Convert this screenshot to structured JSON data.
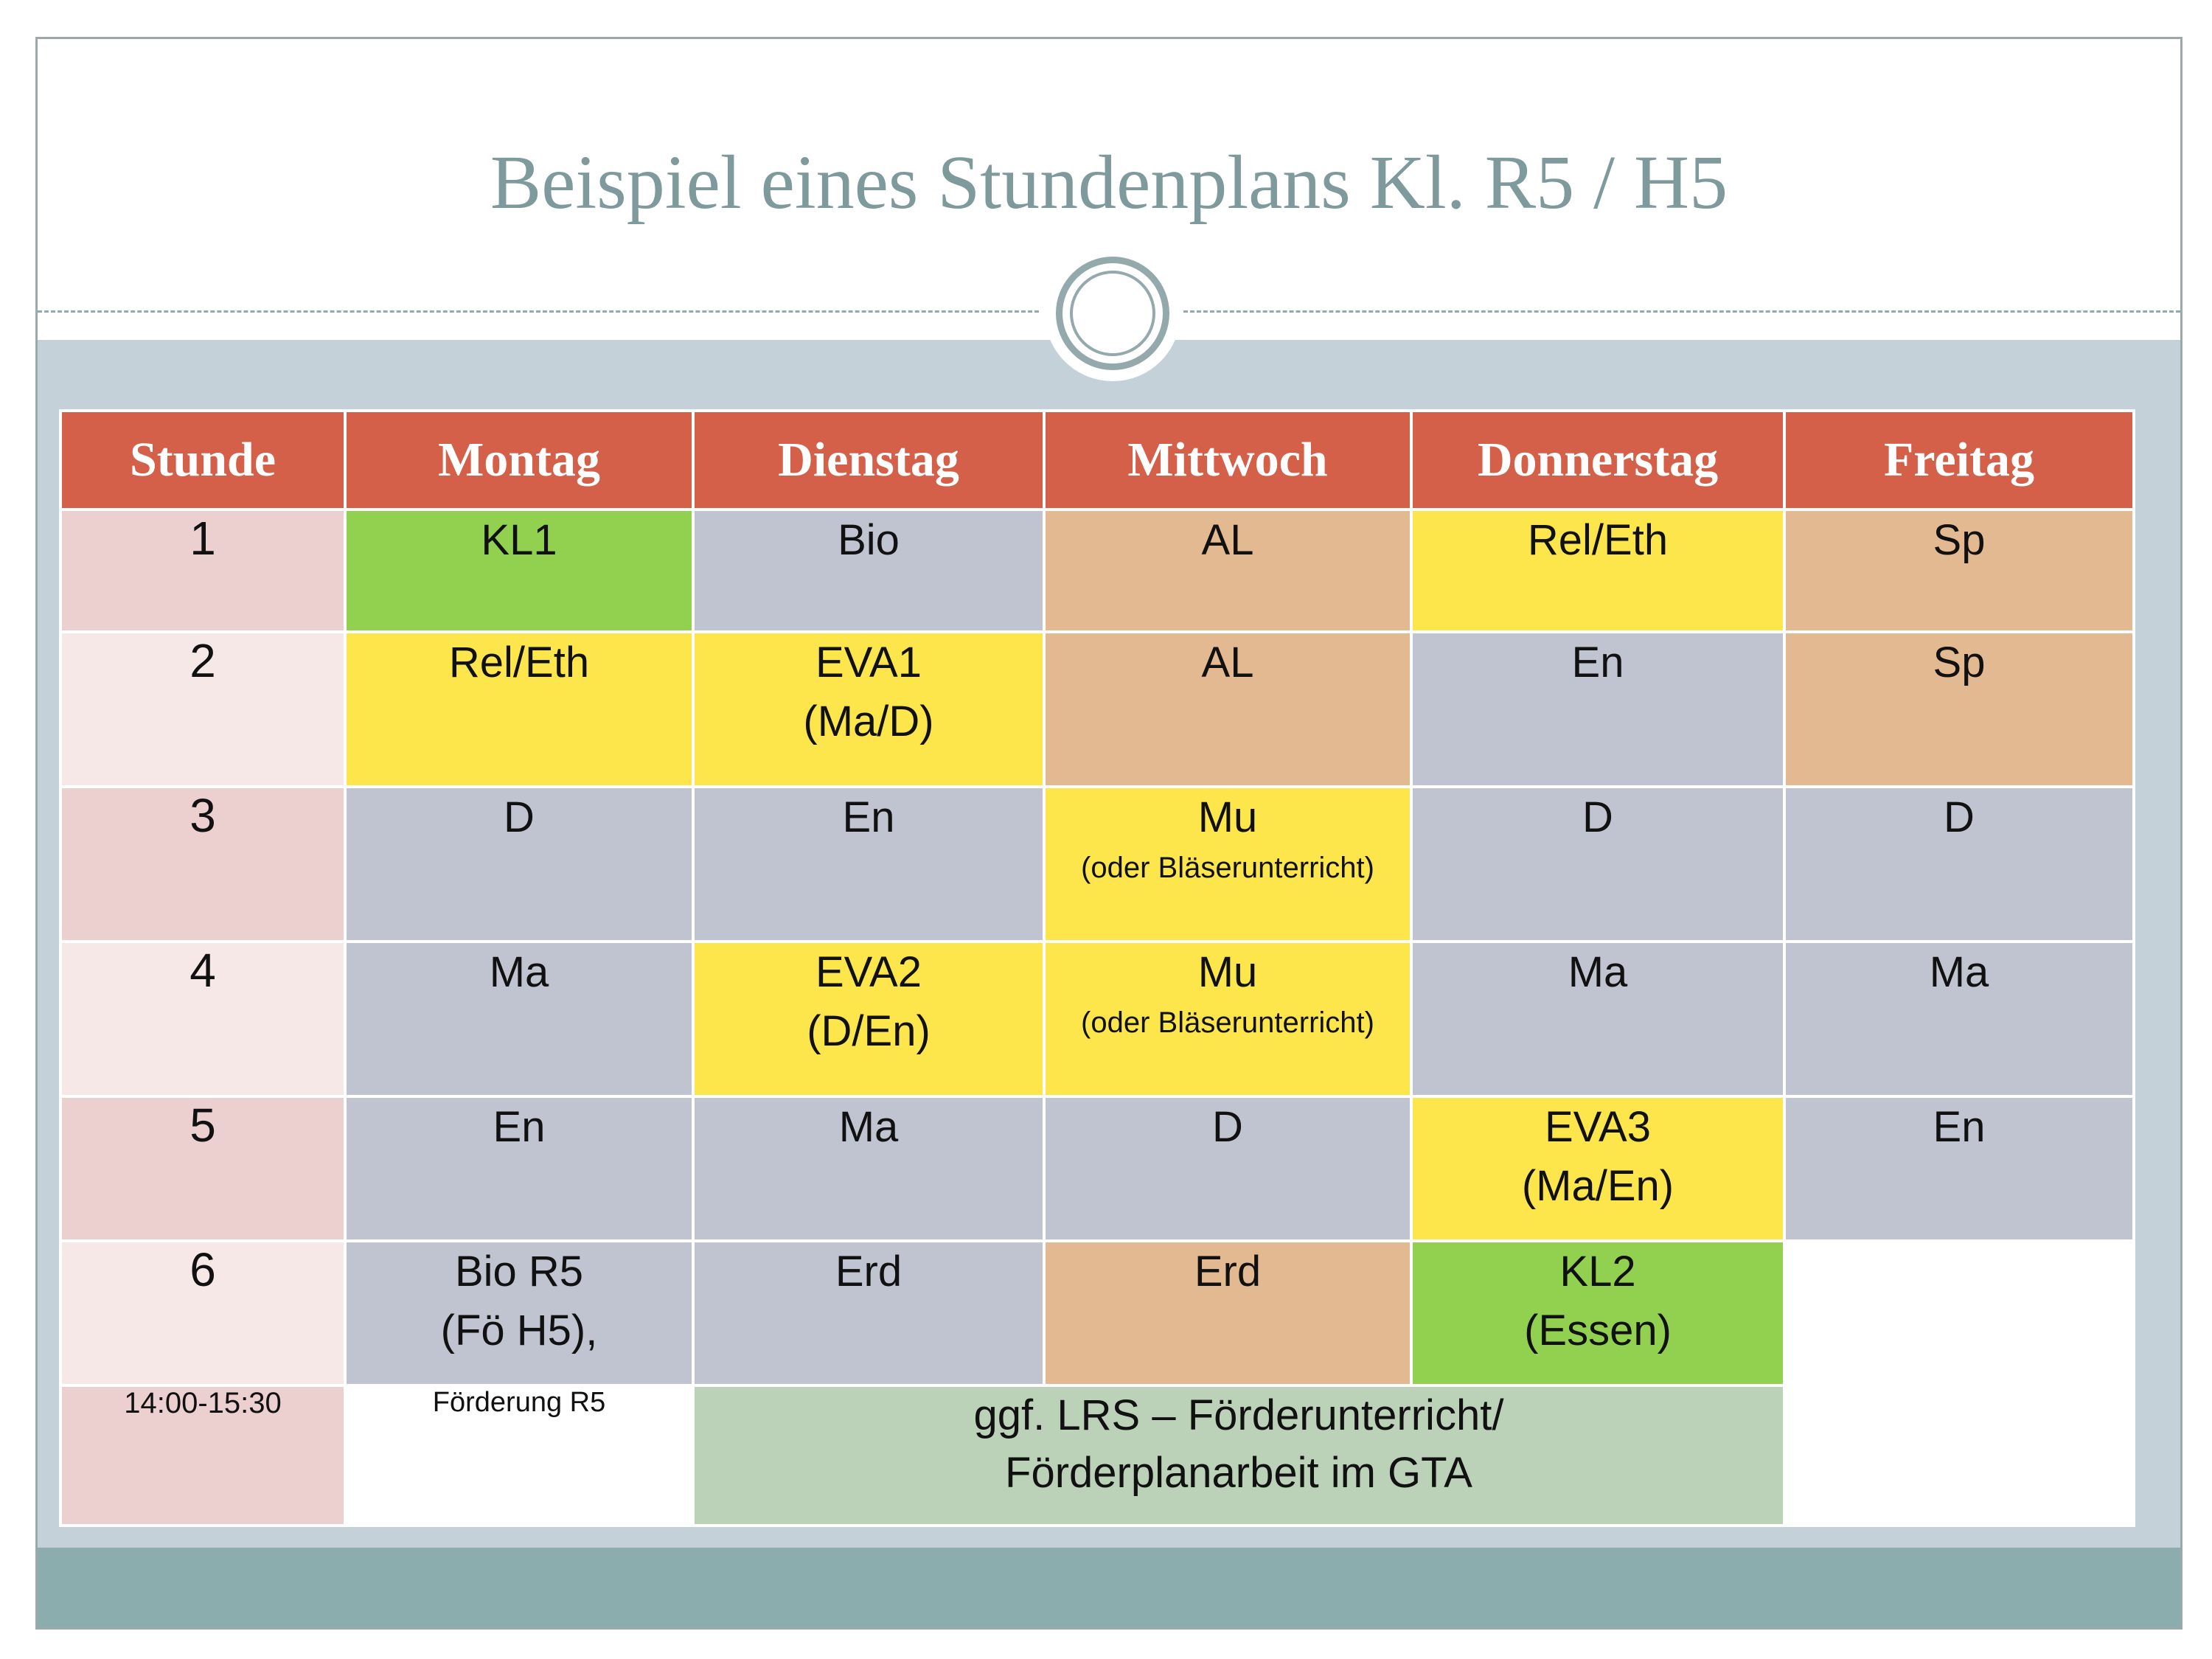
{
  "title": "Beispiel eines Stundenplans Kl. R5 / H5",
  "colors": {
    "header": "#d56049",
    "period_dark": "#ebd0cf",
    "period_light": "#f5e8e7",
    "green": "#92d14f",
    "gray": "#c0c4d1",
    "tan": "#e3b992",
    "yellow": "#fde64b",
    "sage": "#bbd2b8",
    "band": "#c5d1d8",
    "footer": "#8badad"
  },
  "headers": [
    "Stunde",
    "Montag",
    "Dienstag",
    "Mittwoch",
    "Donnerstag",
    "Freitag"
  ],
  "rows": [
    {
      "period": "1",
      "cells": [
        {
          "line1": "KL1",
          "line2": "",
          "note": "",
          "color": "green"
        },
        {
          "line1": "Bio",
          "line2": "",
          "note": "",
          "color": "gray"
        },
        {
          "line1": "AL",
          "line2": "",
          "note": "",
          "color": "tan"
        },
        {
          "line1": "Rel/Eth",
          "line2": "",
          "note": "",
          "color": "yellow"
        },
        {
          "line1": "Sp",
          "line2": "",
          "note": "",
          "color": "tan"
        }
      ]
    },
    {
      "period": "2",
      "cells": [
        {
          "line1": "Rel/Eth",
          "line2": "",
          "note": "",
          "color": "yellow"
        },
        {
          "line1": "EVA1",
          "line2": "(Ma/D)",
          "note": "",
          "color": "yellow"
        },
        {
          "line1": "AL",
          "line2": "",
          "note": "",
          "color": "tan"
        },
        {
          "line1": "En",
          "line2": "",
          "note": "",
          "color": "gray"
        },
        {
          "line1": "Sp",
          "line2": "",
          "note": "",
          "color": "tan"
        }
      ]
    },
    {
      "period": "3",
      "cells": [
        {
          "line1": "D",
          "line2": "",
          "note": "",
          "color": "gray"
        },
        {
          "line1": "En",
          "line2": "",
          "note": "",
          "color": "gray"
        },
        {
          "line1": "Mu",
          "line2": "",
          "note": "(oder Bläserunterricht)",
          "color": "yellow"
        },
        {
          "line1": "D",
          "line2": "",
          "note": "",
          "color": "gray"
        },
        {
          "line1": "D",
          "line2": "",
          "note": "",
          "color": "gray"
        }
      ]
    },
    {
      "period": "4",
      "cells": [
        {
          "line1": "Ma",
          "line2": "",
          "note": "",
          "color": "gray"
        },
        {
          "line1": "EVA2",
          "line2": "(D/En)",
          "note": "",
          "color": "yellow"
        },
        {
          "line1": "Mu",
          "line2": "",
          "note": "(oder Bläserunterricht)",
          "color": "yellow"
        },
        {
          "line1": "Ma",
          "line2": "",
          "note": "",
          "color": "gray"
        },
        {
          "line1": "Ma",
          "line2": "",
          "note": "",
          "color": "gray"
        }
      ]
    },
    {
      "period": "5",
      "cells": [
        {
          "line1": "En",
          "line2": "",
          "note": "",
          "color": "gray"
        },
        {
          "line1": "Ma",
          "line2": "",
          "note": "",
          "color": "gray"
        },
        {
          "line1": "D",
          "line2": "",
          "note": "",
          "color": "gray"
        },
        {
          "line1": "EVA3",
          "line2": "(Ma/En)",
          "note": "",
          "color": "yellow"
        },
        {
          "line1": "En",
          "line2": "",
          "note": "",
          "color": "gray"
        }
      ]
    },
    {
      "period": "6",
      "cells": [
        {
          "line1": "Bio R5",
          "line2": "(Fö H5),",
          "note": "",
          "color": "gray"
        },
        {
          "line1": "Erd",
          "line2": "",
          "note": "",
          "color": "gray"
        },
        {
          "line1": "Erd",
          "line2": "",
          "note": "",
          "color": "tan"
        },
        {
          "line1": "KL2",
          "line2": "(Essen)",
          "note": "",
          "color": "green"
        },
        {
          "line1": "",
          "line2": "",
          "note": "",
          "color": "white"
        }
      ]
    }
  ],
  "afternoon": {
    "time": "14:00-15:30",
    "monday": "Förderung R5",
    "gta_line1": "ggf. LRS – Förderunterricht/",
    "gta_line2": "Förderplanarbeit im GTA"
  }
}
